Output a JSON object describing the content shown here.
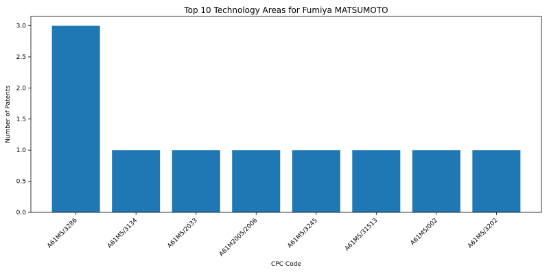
{
  "chart_data": {
    "type": "bar",
    "title": "Top 10 Technology Areas for Fumiya MATSUMOTO",
    "xlabel": "CPC Code",
    "ylabel": "Number of Patents",
    "categories": [
      "A61M5/3286",
      "A61M5/3134",
      "A61M5/2033",
      "A61M2005/2006",
      "A61M5/3245",
      "A61M5/31513",
      "A61M5/002",
      "A61M5/3202"
    ],
    "values": [
      3,
      1,
      1,
      1,
      1,
      1,
      1,
      1
    ],
    "ylim": [
      0,
      3.15
    ],
    "yticks": [
      "0.0",
      "0.5",
      "1.0",
      "1.5",
      "2.0",
      "2.5",
      "3.0"
    ],
    "color": "#1f77b4",
    "grid": false,
    "legend": "none"
  }
}
